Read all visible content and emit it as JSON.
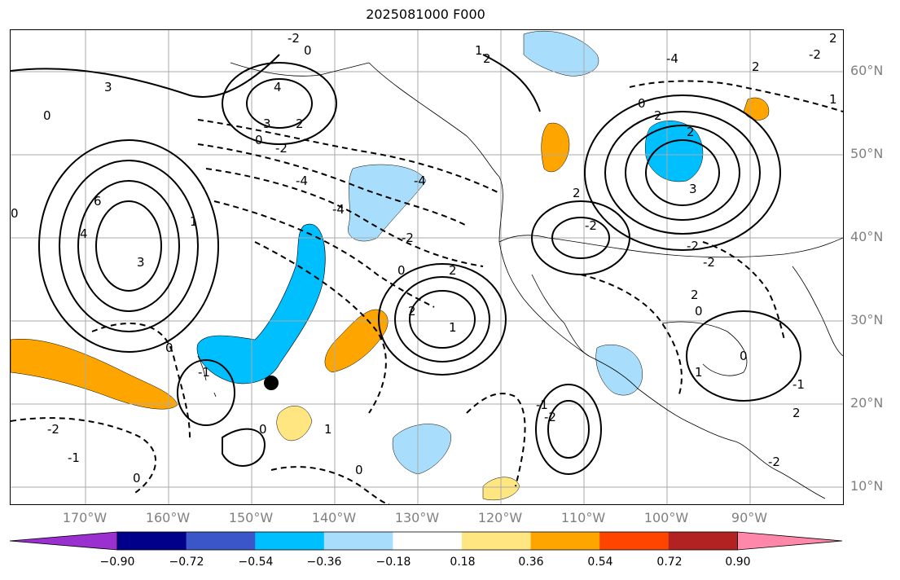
{
  "title": "2025081000 F000",
  "map": {
    "lat_labels": [
      "60°N",
      "50°N",
      "40°N",
      "30°N",
      "20°N",
      "10°N"
    ],
    "lon_labels": [
      "170°W",
      "160°W",
      "150°W",
      "140°W",
      "130°W",
      "120°W",
      "110°W",
      "100°W",
      "90°W"
    ],
    "contour_labels": [
      "0",
      "-2",
      "3",
      "2",
      "1",
      "4",
      "3",
      "2",
      "0",
      "-2",
      "0",
      "-4",
      "-4",
      "-2",
      "0",
      "6",
      "4",
      "3",
      "1",
      "0",
      "2",
      "2",
      "1",
      "-4",
      "2",
      "-2",
      "-2",
      "2",
      "3",
      "2",
      "0",
      "-4",
      "2",
      "-1",
      "0",
      "-2",
      "-1",
      "0",
      "0",
      "1",
      "-1",
      "-2",
      "0",
      "1",
      "2",
      "0",
      "0",
      "-1",
      "2",
      "-2",
      "-2",
      "1",
      "-2",
      "2"
    ],
    "marker": "black-dot"
  },
  "colorbar": {
    "ticks": [
      "−0.90",
      "−0.72",
      "−0.54",
      "−0.36",
      "−0.18",
      "0.18",
      "0.36",
      "0.54",
      "0.72",
      "0.90"
    ],
    "colors": [
      "#9b30d0",
      "#00008b",
      "#3a56c8",
      "#00bfff",
      "#a8ddfb",
      "#ffffff",
      "#ffe680",
      "#ffa500",
      "#ff4500",
      "#b22222",
      "#ff88aa"
    ]
  }
}
